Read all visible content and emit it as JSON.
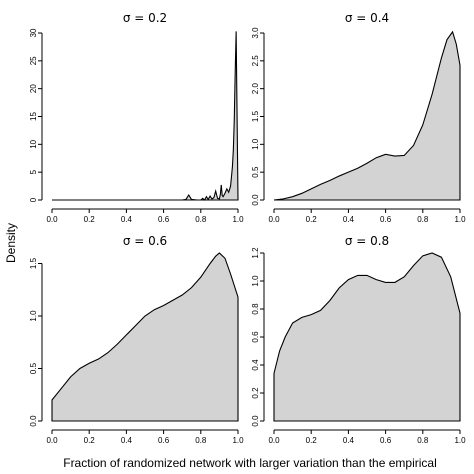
{
  "ylabel": "Density",
  "xlabel": "Fraction of randomized network with larger variation than the empirical",
  "chart_data": [
    {
      "type": "area",
      "title": "σ = 0.2",
      "xlim": [
        0,
        1
      ],
      "ylim": [
        0,
        30
      ],
      "xticks": [
        "0.0",
        "0.2",
        "0.4",
        "0.6",
        "0.8",
        "1.0"
      ],
      "yticks": [
        "0",
        "5",
        "10",
        "15",
        "20",
        "25",
        "30"
      ],
      "x": [
        0.0,
        0.7,
        0.72,
        0.735,
        0.75,
        0.78,
        0.8,
        0.81,
        0.82,
        0.83,
        0.84,
        0.85,
        0.86,
        0.87,
        0.88,
        0.89,
        0.9,
        0.905,
        0.91,
        0.915,
        0.92,
        0.93,
        0.94,
        0.95,
        0.96,
        0.965,
        0.97,
        0.975,
        0.98,
        0.985,
        0.99,
        1.0
      ],
      "y": [
        0.0,
        0.0,
        0.1,
        0.9,
        0.1,
        0.0,
        0.0,
        0.3,
        0.0,
        0.6,
        0.1,
        0.7,
        0.2,
        0.4,
        1.6,
        0.3,
        0.2,
        1.0,
        2.7,
        0.8,
        0.6,
        1.2,
        2.0,
        1.4,
        2.5,
        4.2,
        6.0,
        9.0,
        14.5,
        23.0,
        30.3,
        0.0
      ]
    },
    {
      "type": "area",
      "title": "σ = 0.4",
      "xlim": [
        0,
        1
      ],
      "ylim": [
        0,
        3
      ],
      "xticks": [
        "0.0",
        "0.2",
        "0.4",
        "0.6",
        "0.8",
        "1.0"
      ],
      "yticks": [
        "0.0",
        "0.5",
        "1.0",
        "1.5",
        "2.0",
        "2.5",
        "3.0"
      ],
      "x": [
        0.0,
        0.05,
        0.1,
        0.15,
        0.2,
        0.25,
        0.3,
        0.35,
        0.4,
        0.45,
        0.5,
        0.55,
        0.6,
        0.65,
        0.7,
        0.75,
        0.8,
        0.85,
        0.9,
        0.93,
        0.96,
        0.98,
        1.0
      ],
      "y": [
        0.0,
        0.02,
        0.06,
        0.12,
        0.2,
        0.28,
        0.35,
        0.43,
        0.5,
        0.57,
        0.66,
        0.76,
        0.82,
        0.79,
        0.8,
        0.98,
        1.35,
        1.9,
        2.55,
        2.88,
        3.02,
        2.8,
        2.42
      ]
    },
    {
      "type": "area",
      "title": "σ = 0.6",
      "xlim": [
        0,
        1
      ],
      "ylim": [
        0,
        1.6
      ],
      "xticks": [
        "0.0",
        "0.2",
        "0.4",
        "0.6",
        "0.8",
        "1.0"
      ],
      "yticks": [
        "0.0",
        "0.5",
        "1.0",
        "1.5"
      ],
      "x": [
        0.0,
        0.05,
        0.1,
        0.15,
        0.2,
        0.25,
        0.3,
        0.35,
        0.4,
        0.45,
        0.5,
        0.55,
        0.6,
        0.65,
        0.7,
        0.75,
        0.8,
        0.85,
        0.88,
        0.9,
        0.93,
        0.96,
        1.0
      ],
      "y": [
        0.2,
        0.31,
        0.42,
        0.5,
        0.55,
        0.59,
        0.65,
        0.73,
        0.82,
        0.91,
        1.0,
        1.06,
        1.1,
        1.15,
        1.2,
        1.27,
        1.37,
        1.5,
        1.57,
        1.6,
        1.55,
        1.4,
        1.18
      ]
    },
    {
      "type": "area",
      "title": "σ = 0.8",
      "xlim": [
        0,
        1
      ],
      "ylim": [
        0,
        1.2
      ],
      "xticks": [
        "0.0",
        "0.2",
        "0.4",
        "0.6",
        "0.8",
        "1.0"
      ],
      "yticks": [
        "0.0",
        "0.2",
        "0.4",
        "0.6",
        "0.8",
        "1.0",
        "1.2"
      ],
      "x": [
        0.0,
        0.03,
        0.06,
        0.1,
        0.15,
        0.2,
        0.25,
        0.3,
        0.35,
        0.4,
        0.45,
        0.5,
        0.55,
        0.6,
        0.65,
        0.7,
        0.75,
        0.8,
        0.85,
        0.9,
        0.95,
        1.0
      ],
      "y": [
        0.34,
        0.5,
        0.6,
        0.7,
        0.74,
        0.76,
        0.79,
        0.86,
        0.95,
        1.01,
        1.04,
        1.04,
        1.01,
        0.99,
        0.99,
        1.03,
        1.11,
        1.18,
        1.2,
        1.17,
        1.03,
        0.77
      ]
    }
  ]
}
